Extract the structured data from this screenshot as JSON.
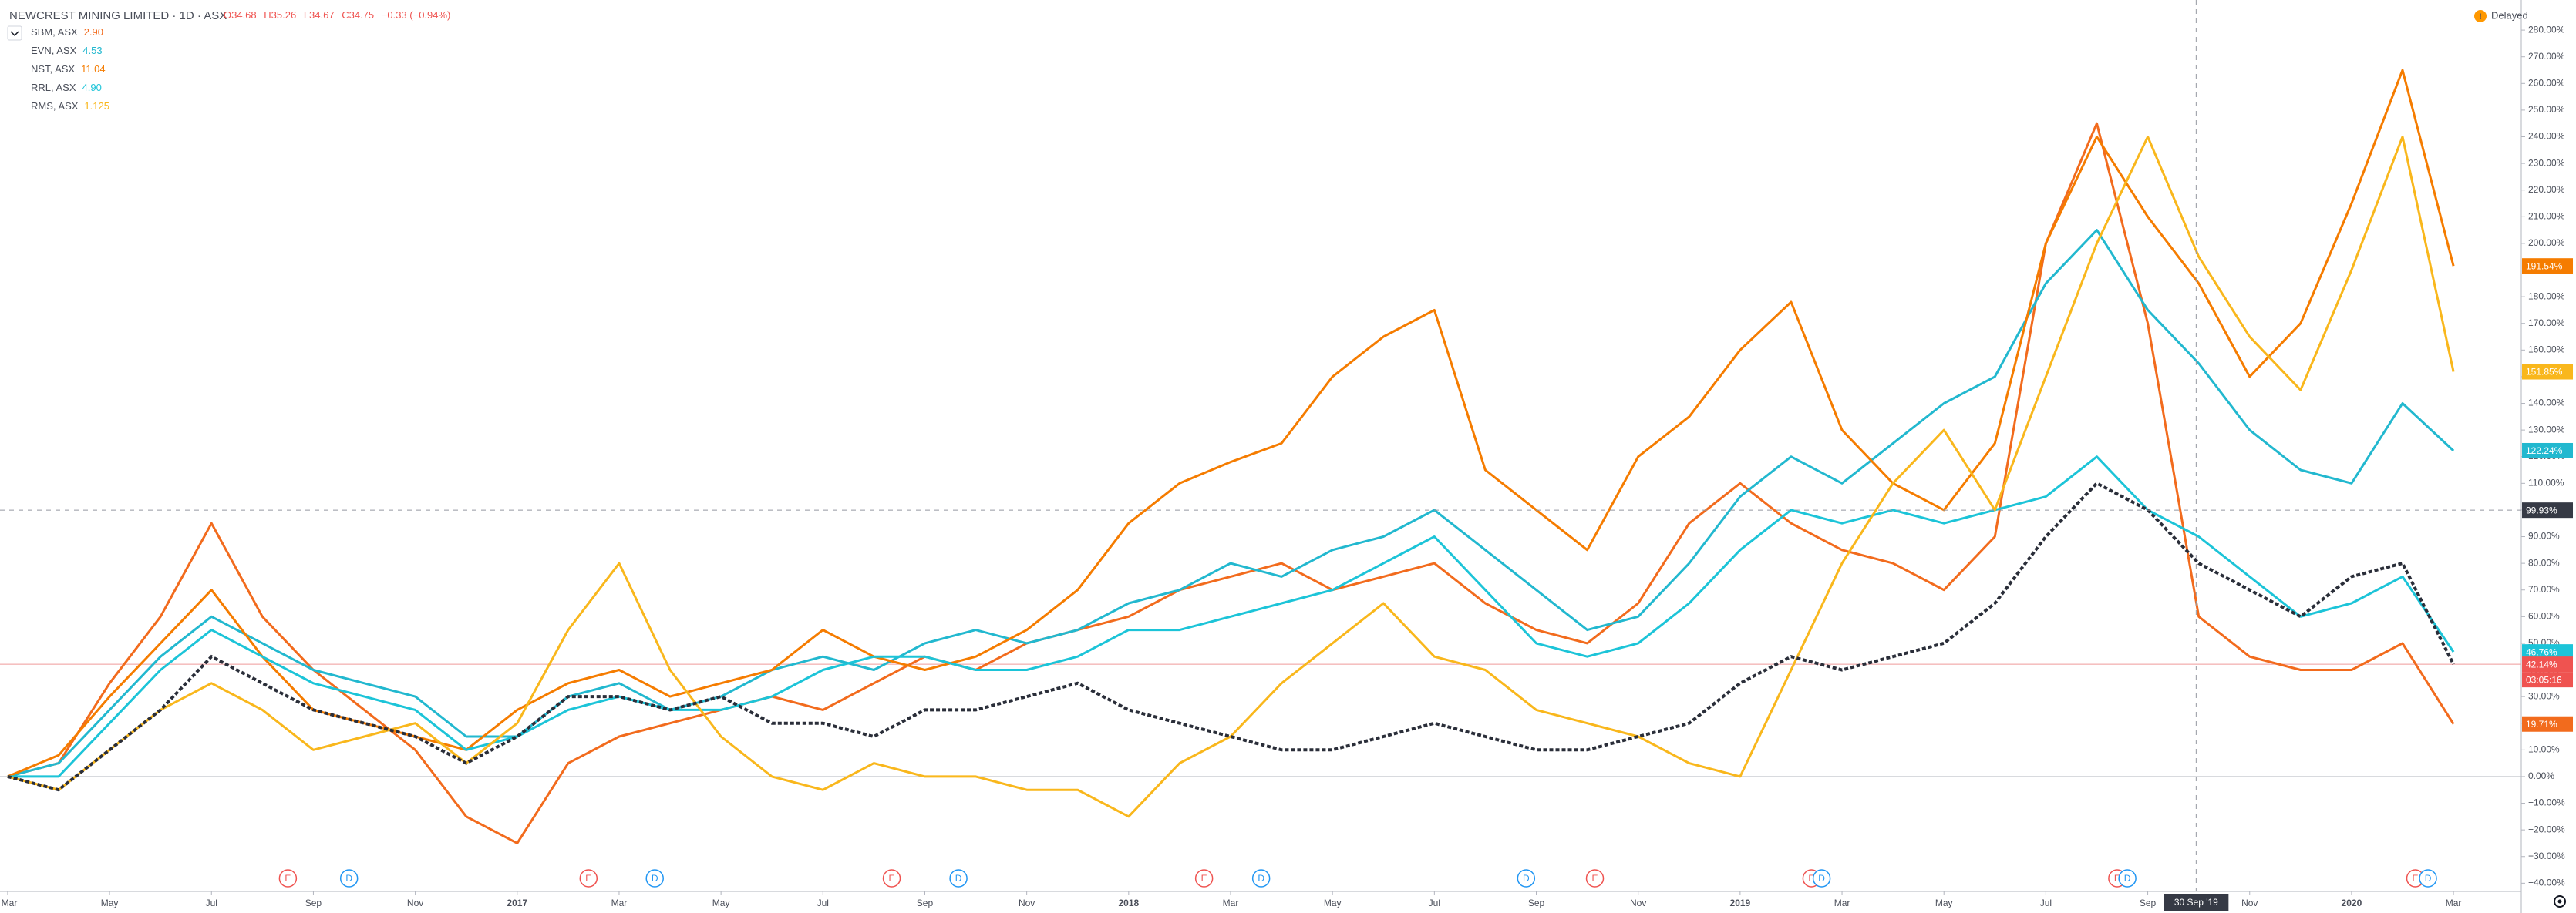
{
  "chart_data": {
    "type": "line",
    "title": "NEWCREST MINING LIMITED · 1D · ASX",
    "ohlc": [
      "O34.68",
      "H35.26",
      "L34.67",
      "C34.75",
      "−0.33 (−0.94%)"
    ],
    "status": "Delayed",
    "xlim": [
      -0.15,
      49.3
    ],
    "xticks": [
      {
        "value": 0,
        "label": "Mar"
      },
      {
        "value": 2,
        "label": "May"
      },
      {
        "value": 4,
        "label": "Jul"
      },
      {
        "value": 6,
        "label": "Sep"
      },
      {
        "value": 8,
        "label": "Nov"
      },
      {
        "value": 10,
        "label": "2017"
      },
      {
        "value": 12,
        "label": "Mar"
      },
      {
        "value": 14,
        "label": "May"
      },
      {
        "value": 16,
        "label": "Jul"
      },
      {
        "value": 18,
        "label": "Sep"
      },
      {
        "value": 20,
        "label": "Nov"
      },
      {
        "value": 22,
        "label": "2018"
      },
      {
        "value": 24,
        "label": "Mar"
      },
      {
        "value": 26,
        "label": "May"
      },
      {
        "value": 28,
        "label": "Jul"
      },
      {
        "value": 30,
        "label": "Sep"
      },
      {
        "value": 32,
        "label": "Nov"
      },
      {
        "value": 34,
        "label": "2019"
      },
      {
        "value": 36,
        "label": "Mar"
      },
      {
        "value": 38,
        "label": "May"
      },
      {
        "value": 40,
        "label": "Jul"
      },
      {
        "value": 42,
        "label": "Sep"
      },
      {
        "value": 44,
        "label": "Nov"
      },
      {
        "value": 46,
        "label": "2020"
      },
      {
        "value": 48,
        "label": "Mar"
      }
    ],
    "ylim": [
      -42.5,
      291.3
    ],
    "yticks": [
      {
        "value": -40,
        "label": "−40.00%"
      },
      {
        "value": -30,
        "label": "−30.00%"
      },
      {
        "value": -20,
        "label": "−20.00%"
      },
      {
        "value": -10,
        "label": "−10.00%"
      },
      {
        "value": 0,
        "label": "0.00%"
      },
      {
        "value": 10,
        "label": "10.00%"
      },
      {
        "value": 20,
        "label": "20.00%"
      },
      {
        "value": 30,
        "label": "30.00%"
      },
      {
        "value": 40,
        "label": "40.00%"
      },
      {
        "value": 50,
        "label": "50.00%"
      },
      {
        "value": 60,
        "label": "60.00%"
      },
      {
        "value": 70,
        "label": "70.00%"
      },
      {
        "value": 80,
        "label": "80.00%"
      },
      {
        "value": 90,
        "label": "90.00%"
      },
      {
        "value": 100,
        "label": "100.00%"
      },
      {
        "value": 110,
        "label": "110.00%"
      },
      {
        "value": 120,
        "label": "120.00%"
      },
      {
        "value": 130,
        "label": "130.00%"
      },
      {
        "value": 140,
        "label": "140.00%"
      },
      {
        "value": 150,
        "label": "150.00%"
      },
      {
        "value": 160,
        "label": "160.00%"
      },
      {
        "value": 170,
        "label": "170.00%"
      },
      {
        "value": 180,
        "label": "180.00%"
      },
      {
        "value": 190,
        "label": "190.00%"
      },
      {
        "value": 200,
        "label": "200.00%"
      },
      {
        "value": 210,
        "label": "210.00%"
      },
      {
        "value": 220,
        "label": "220.00%"
      },
      {
        "value": 230,
        "label": "230.00%"
      },
      {
        "value": 240,
        "label": "240.00%"
      },
      {
        "value": 250,
        "label": "250.00%"
      },
      {
        "value": 260,
        "label": "260.00%"
      },
      {
        "value": 270,
        "label": "270.00%"
      },
      {
        "value": 280,
        "label": "280.00%"
      }
    ],
    "main": {
      "color": "#2a2e39",
      "last_label": "42.14%",
      "countdown": "03:05:16",
      "values": [
        0,
        -5,
        10,
        25,
        45,
        35,
        25,
        20,
        15,
        5,
        15,
        30,
        30,
        25,
        30,
        20,
        20,
        15,
        25,
        25,
        30,
        35,
        25,
        20,
        15,
        10,
        10,
        15,
        20,
        15,
        10,
        10,
        15,
        20,
        35,
        45,
        40,
        45,
        50,
        65,
        90,
        110,
        100,
        80,
        70,
        60,
        75,
        80,
        42.14
      ]
    },
    "series": [
      {
        "name": "SBM, ASX",
        "price": "2.90",
        "color": "#f26b1d",
        "last_label": "19.71%",
        "values": [
          0,
          5,
          35,
          60,
          95,
          60,
          40,
          25,
          10,
          -15,
          -25,
          5,
          15,
          20,
          25,
          30,
          25,
          35,
          45,
          40,
          50,
          55,
          60,
          70,
          75,
          80,
          70,
          75,
          80,
          65,
          55,
          50,
          65,
          95,
          110,
          95,
          85,
          80,
          70,
          90,
          200,
          245,
          170,
          60,
          45,
          40,
          40,
          50,
          19.71
        ]
      },
      {
        "name": "EVN, ASX",
        "price": "4.53",
        "color": "#22b8cf",
        "last_label": "122.24%",
        "values": [
          0,
          5,
          25,
          45,
          60,
          50,
          40,
          35,
          30,
          15,
          15,
          30,
          35,
          25,
          30,
          40,
          45,
          40,
          50,
          55,
          50,
          55,
          65,
          70,
          80,
          75,
          85,
          90,
          100,
          85,
          70,
          55,
          60,
          80,
          105,
          120,
          110,
          125,
          140,
          150,
          185,
          205,
          175,
          155,
          130,
          115,
          110,
          140,
          122.24
        ]
      },
      {
        "name": "NST, ASX",
        "price": "11.04",
        "color": "#f57c00",
        "last_label": "191.54%",
        "values": [
          0,
          8,
          30,
          50,
          70,
          45,
          25,
          20,
          15,
          10,
          25,
          35,
          40,
          30,
          35,
          40,
          55,
          45,
          40,
          45,
          55,
          70,
          95,
          110,
          118,
          125,
          150,
          165,
          175,
          115,
          100,
          85,
          120,
          135,
          160,
          178,
          130,
          110,
          100,
          125,
          200,
          240,
          210,
          185,
          150,
          170,
          215,
          265,
          191.54
        ]
      },
      {
        "name": "RRL, ASX",
        "price": "4.90",
        "color": "#1cc4d8",
        "last_label": "46.76%",
        "values": [
          0,
          0,
          20,
          40,
          55,
          45,
          35,
          30,
          25,
          10,
          15,
          25,
          30,
          25,
          25,
          30,
          40,
          45,
          45,
          40,
          40,
          45,
          55,
          55,
          60,
          65,
          70,
          80,
          90,
          70,
          50,
          45,
          50,
          65,
          85,
          100,
          95,
          100,
          95,
          100,
          105,
          120,
          100,
          90,
          75,
          60,
          65,
          75,
          46.76
        ]
      },
      {
        "name": "RMS, ASX",
        "price": "1.125",
        "color": "#f9b71c",
        "last_label": "151.85%",
        "values": [
          0,
          -5,
          10,
          25,
          35,
          25,
          10,
          15,
          20,
          5,
          20,
          55,
          80,
          40,
          15,
          0,
          -5,
          5,
          0,
          0,
          -5,
          -5,
          -15,
          5,
          15,
          35,
          50,
          65,
          45,
          40,
          25,
          20,
          15,
          5,
          0,
          40,
          80,
          110,
          130,
          100,
          150,
          200,
          240,
          195,
          165,
          145,
          190,
          240,
          151.85
        ]
      }
    ],
    "events": [
      {
        "label": "E",
        "x": 5.5
      },
      {
        "label": "D",
        "x": 6.7
      },
      {
        "label": "E",
        "x": 11.4
      },
      {
        "label": "D",
        "x": 12.7
      },
      {
        "label": "E",
        "x": 17.35
      },
      {
        "label": "D",
        "x": 18.66
      },
      {
        "label": "E",
        "x": 23.48
      },
      {
        "label": "D",
        "x": 24.6
      },
      {
        "label": "D",
        "x": 29.8
      },
      {
        "label": "E",
        "x": 31.15
      },
      {
        "label": "E",
        "x": 35.4
      },
      {
        "label": "D",
        "x": 35.6
      },
      {
        "label": "E",
        "x": 41.4
      },
      {
        "label": "D",
        "x": 41.6
      },
      {
        "label": "E",
        "x": 47.25
      },
      {
        "label": "D",
        "x": 47.5
      }
    ],
    "crosshair": {
      "x": 42.95,
      "x_label": "30 Sep '19",
      "y": 99.93,
      "y_label": "99.93%"
    },
    "zero_line": 0
  }
}
